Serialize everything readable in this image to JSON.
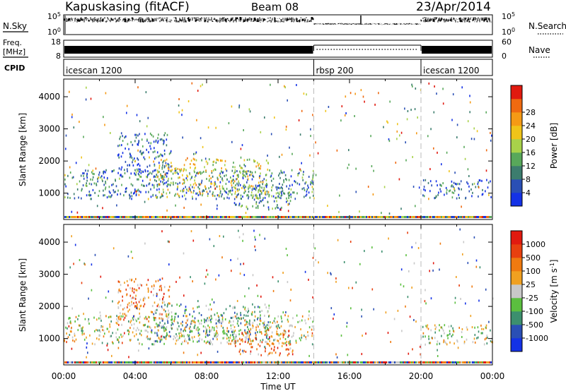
{
  "header": {
    "station": "Kapuskasing (fitACF)",
    "beam": "Beam 08",
    "date": "23/Apr/2014"
  },
  "nsky_panel": {
    "label": "N.Sky",
    "ticks_left": [
      "10^5",
      "10^0"
    ],
    "ticks_right": [
      "10^5",
      "10^0"
    ],
    "right_label": "N.Search"
  },
  "freq_panel": {
    "label_line1": "Freq.",
    "label_line2": "[MHz]",
    "ticks_left": [
      "18",
      "8"
    ],
    "ticks_right": [
      "60",
      "0"
    ],
    "right_label": "Nave"
  },
  "cpid_panel": {
    "label": "CPID",
    "segments": [
      {
        "name": "icescan 1200",
        "start_hour": 0,
        "end_hour": 14
      },
      {
        "name": "rbsp 200",
        "start_hour": 14,
        "end_hour": 20
      },
      {
        "name": "icescan 1200",
        "start_hour": 20,
        "end_hour": 24
      }
    ]
  },
  "chart_data": [
    {
      "type": "scatter",
      "title": "",
      "ylabel": "Slant Range [km]",
      "xlabel": "",
      "xlim": [
        0,
        24
      ],
      "ylim": [
        180,
        4550
      ],
      "y_ticks": [
        1000,
        2000,
        3000,
        4000
      ],
      "x_mode_boundaries_hours": [
        14,
        20
      ],
      "colorbar": {
        "label": "Power [dB]",
        "ticks": [
          "4",
          "8",
          "12",
          "16",
          "20",
          "24",
          "28"
        ],
        "colors": [
          "#1432e6",
          "#2a4fb5",
          "#3c7d6e",
          "#58a85a",
          "#a8d24a",
          "#f0c419",
          "#f59a15",
          "#ef6a10",
          "#e11a0f"
        ]
      },
      "echo_regions": [
        {
          "hours": [
            0.0,
            14.0
          ],
          "range_km": [
            850,
            1750
          ],
          "level": 0.25
        },
        {
          "hours": [
            3.0,
            6.0
          ],
          "range_km": [
            1600,
            2900
          ],
          "level": 0.2
        },
        {
          "hours": [
            5.0,
            11.5
          ],
          "range_km": [
            900,
            2100
          ],
          "level": 0.55
        },
        {
          "hours": [
            9.5,
            12.8
          ],
          "range_km": [
            500,
            1300
          ],
          "level": 0.3
        },
        {
          "hours": [
            20.0,
            24.0
          ],
          "range_km": [
            850,
            1450
          ],
          "level": 0.2
        }
      ]
    },
    {
      "type": "scatter",
      "title": "",
      "ylabel": "Slant Range [km]",
      "xlabel": "Time UT",
      "xlim": [
        0,
        24
      ],
      "ylim": [
        180,
        4550
      ],
      "x_ticks": [
        "00:00",
        "04:00",
        "08:00",
        "12:00",
        "16:00",
        "20:00",
        "00:00"
      ],
      "y_ticks": [
        1000,
        2000,
        3000,
        4000
      ],
      "x_mode_boundaries_hours": [
        14,
        20
      ],
      "colorbar": {
        "label": "Velocity [m s^-1]",
        "ticks": [
          "1000",
          "500",
          "100",
          "25",
          "-25",
          "-100",
          "-500",
          "-1000"
        ],
        "colors": [
          "#1432e6",
          "#2a4fb5",
          "#3c8f6e",
          "#5bbf3f",
          "#c8c8c8",
          "#f0a020",
          "#ef7a10",
          "#e8400f",
          "#e11a0f"
        ]
      },
      "echo_regions": [
        {
          "hours": [
            0.0,
            14.0
          ],
          "range_km": [
            850,
            1750
          ],
          "level": 0.5
        },
        {
          "hours": [
            3.0,
            6.0
          ],
          "range_km": [
            1600,
            2900
          ],
          "level": 0.7
        },
        {
          "hours": [
            5.0,
            11.5
          ],
          "range_km": [
            900,
            2100
          ],
          "level": 0.35
        },
        {
          "hours": [
            9.5,
            12.8
          ],
          "range_km": [
            500,
            1300
          ],
          "level": 0.75
        },
        {
          "hours": [
            20.0,
            24.0
          ],
          "range_km": [
            850,
            1450
          ],
          "level": 0.5
        }
      ]
    }
  ]
}
